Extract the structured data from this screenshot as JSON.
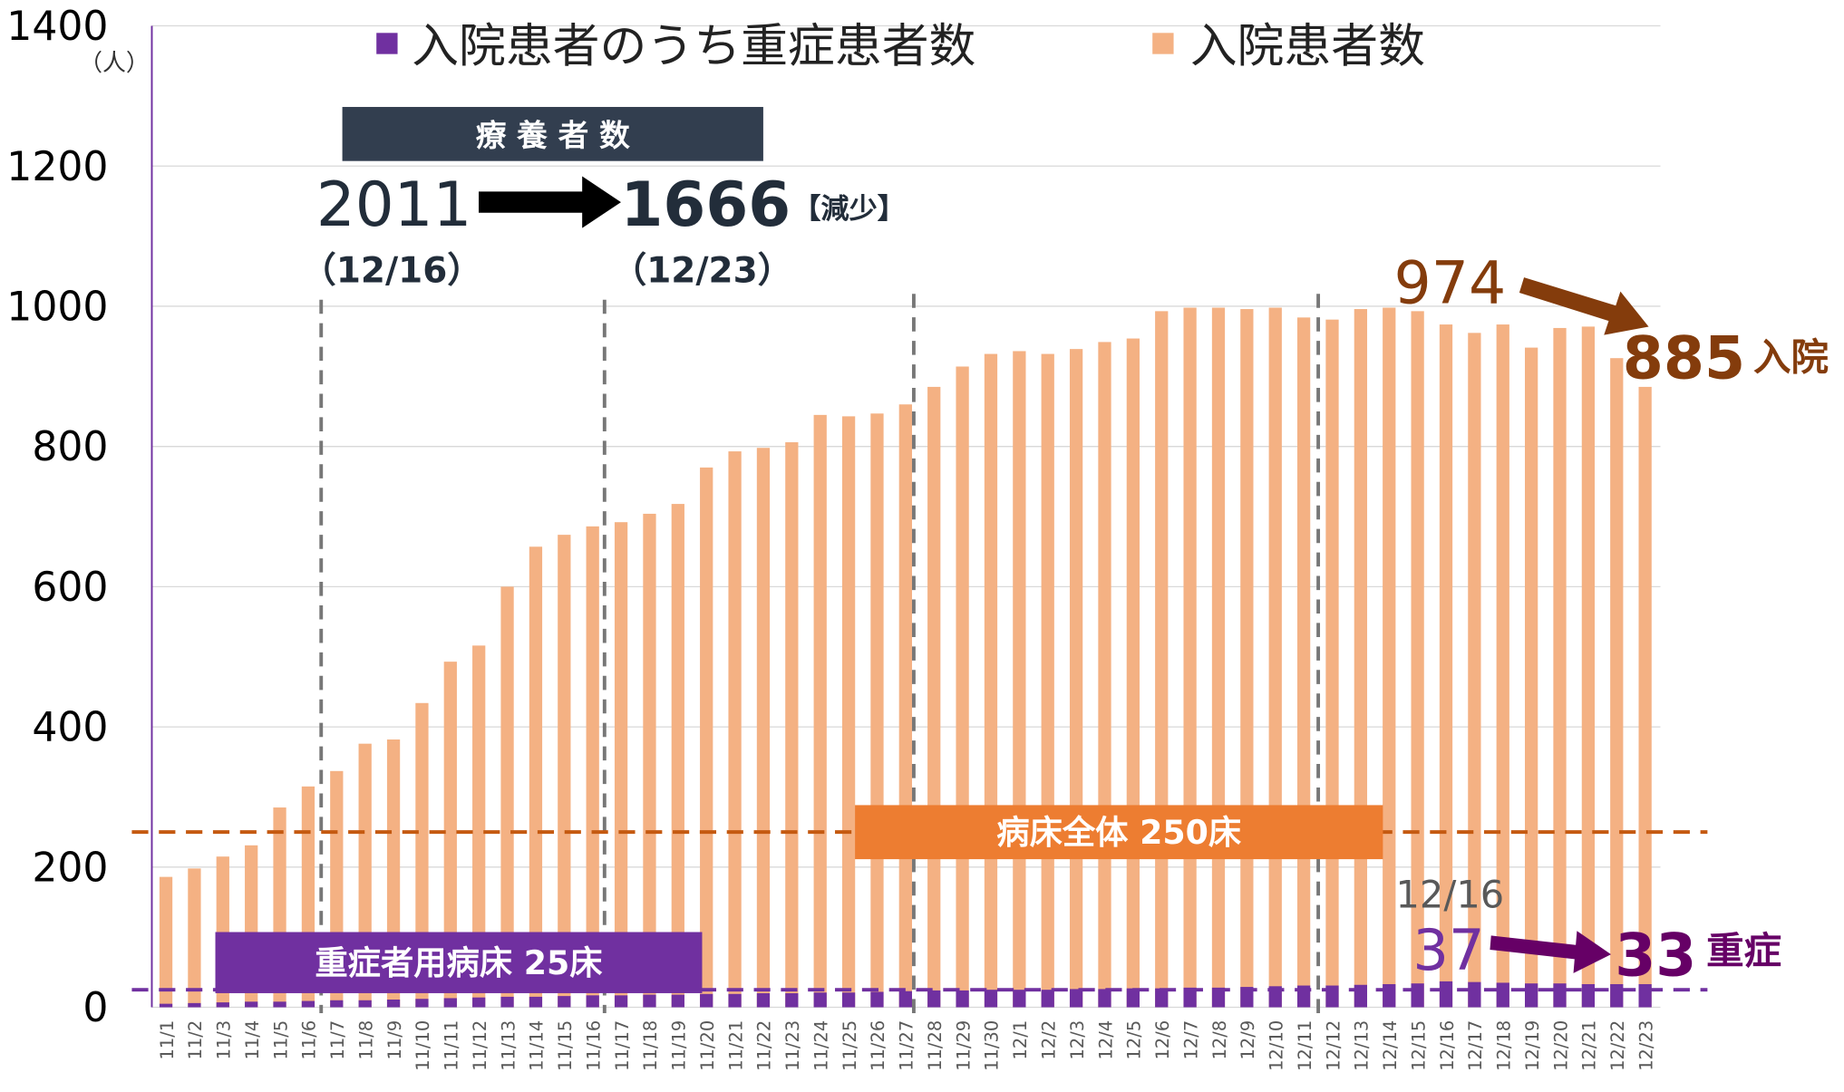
{
  "chart_data": {
    "type": "bar",
    "categories": [
      "11/1",
      "11/2",
      "11/3",
      "11/4",
      "11/5",
      "11/6",
      "11/7",
      "11/8",
      "11/9",
      "11/10",
      "11/11",
      "11/12",
      "11/13",
      "11/14",
      "11/15",
      "11/16",
      "11/17",
      "11/18",
      "11/19",
      "11/20",
      "11/21",
      "11/22",
      "11/23",
      "11/24",
      "11/25",
      "11/26",
      "11/27",
      "11/28",
      "11/29",
      "11/30",
      "12/1",
      "12/2",
      "12/3",
      "12/4",
      "12/5",
      "12/6",
      "12/7",
      "12/8",
      "12/9",
      "12/10",
      "12/11",
      "12/12",
      "12/13",
      "12/14",
      "12/15",
      "12/16",
      "12/17",
      "12/18",
      "12/19",
      "12/20",
      "12/21",
      "12/22",
      "12/23"
    ],
    "series": [
      {
        "name": "入院患者数",
        "color": "#f4b183",
        "values": [
          186,
          198,
          215,
          231,
          285,
          315,
          337,
          376,
          382,
          434,
          493,
          516,
          600,
          657,
          674,
          686,
          692,
          704,
          718,
          770,
          793,
          798,
          806,
          845,
          843,
          847,
          860,
          885,
          914,
          932,
          936,
          932,
          939,
          949,
          954,
          993,
          998,
          998,
          996,
          998,
          984,
          981,
          996,
          998,
          993,
          974,
          962,
          974,
          941,
          969,
          971,
          926,
          885
        ]
      },
      {
        "name": "入院患者のうち重症患者数",
        "color": "#7030a0",
        "values": [
          5,
          6,
          7,
          8,
          8,
          9,
          10,
          10,
          11,
          12,
          13,
          14,
          15,
          15,
          16,
          17,
          17,
          18,
          18,
          19,
          19,
          20,
          20,
          21,
          21,
          22,
          23,
          24,
          24,
          25,
          25,
          25,
          26,
          26,
          27,
          27,
          28,
          28,
          29,
          30,
          31,
          31,
          32,
          33,
          34,
          37,
          36,
          35,
          34,
          34,
          33,
          33,
          33
        ]
      }
    ],
    "ylim": [
      0,
      1400
    ],
    "yticks": [
      0,
      200,
      400,
      600,
      800,
      1000,
      1200,
      1400
    ],
    "grid": true,
    "y_unit": "（人）",
    "reference_lines": [
      {
        "value": 250,
        "label": "病床全体 250床",
        "color": "#c55a11"
      },
      {
        "value": 25,
        "label": "重症者用病床 25床",
        "color": "#7030a0"
      }
    ],
    "annotations": {
      "box_title": "療 養 者 数",
      "from_value": "2011",
      "to_value": "1666",
      "change": "【減少】",
      "from_date": "（12/16）",
      "to_date": "（12/23）",
      "inpatient_from": "974",
      "inpatient_to": "885",
      "inpatient_label": "入院",
      "severe_date": "12/16",
      "severe_from": "37",
      "severe_to": "33",
      "severe_label": "重症"
    }
  }
}
